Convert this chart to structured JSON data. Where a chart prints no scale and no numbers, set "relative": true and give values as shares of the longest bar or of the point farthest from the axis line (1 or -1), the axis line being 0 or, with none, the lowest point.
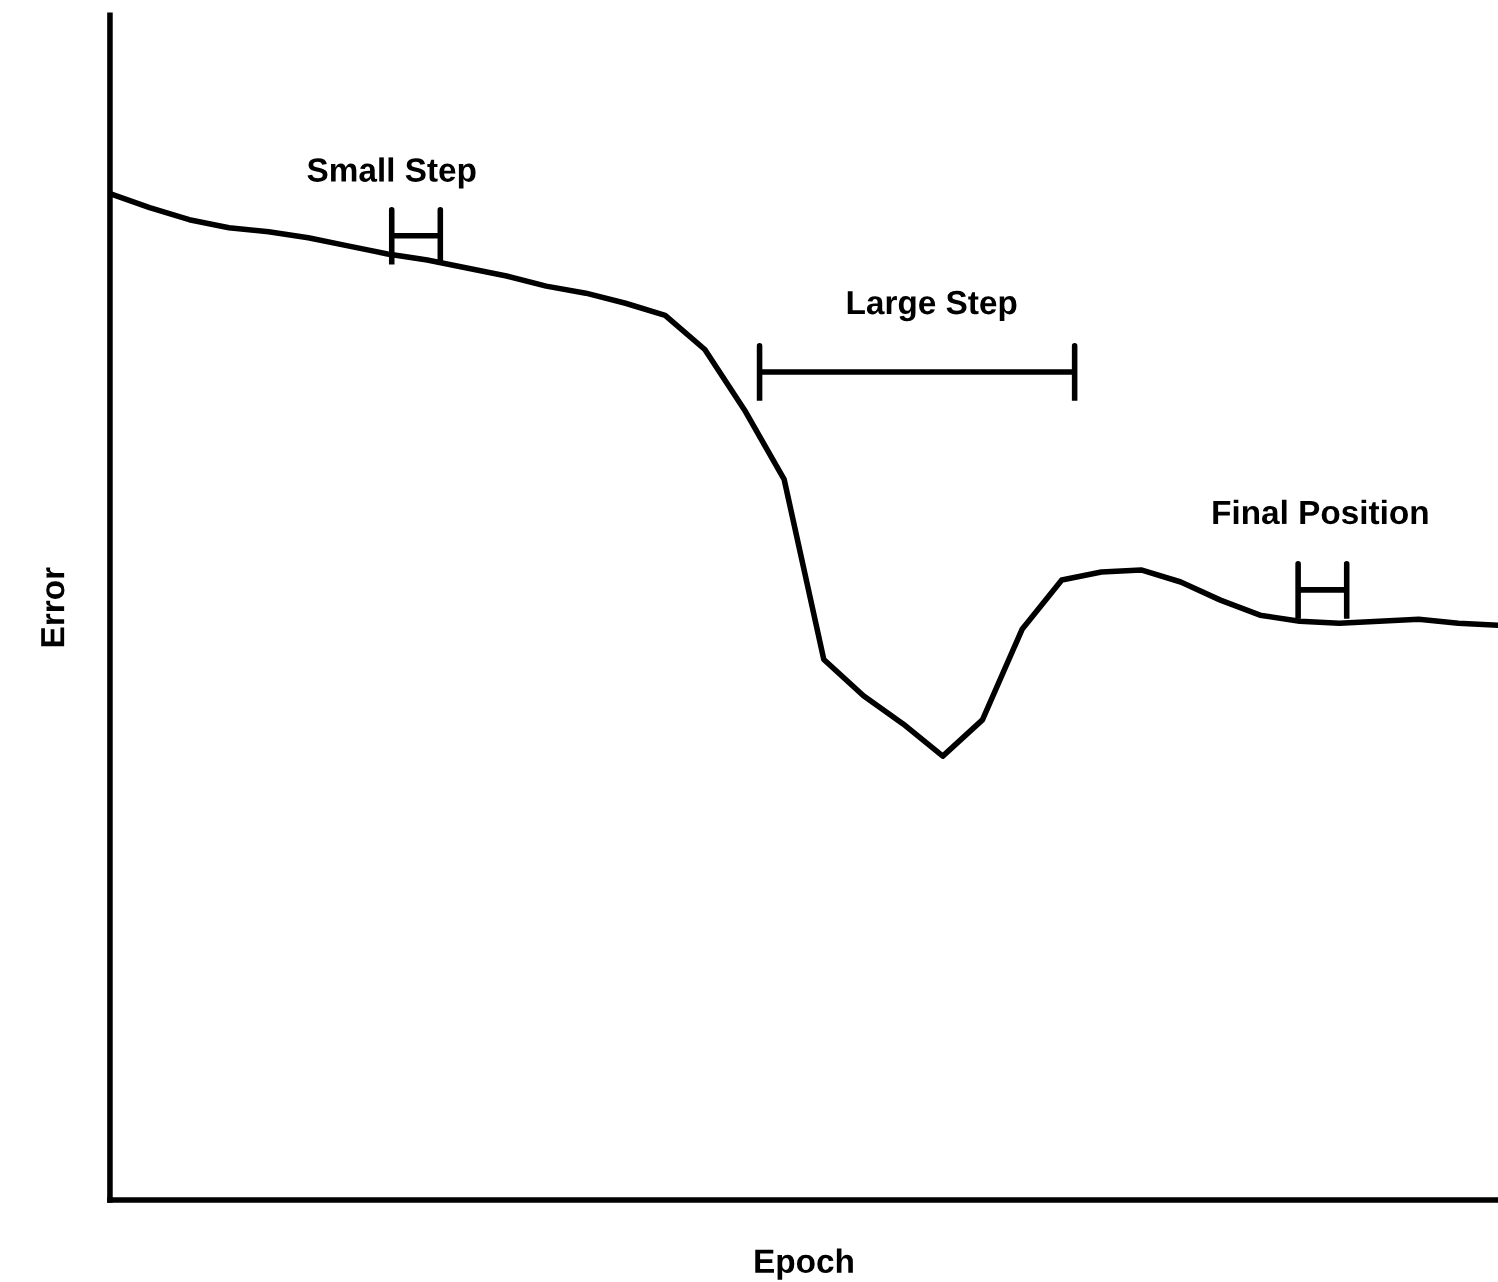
{
  "chart_data": {
    "type": "line",
    "relative": true,
    "xlabel": "Epoch",
    "ylabel": "Error",
    "categories": [
      null,
      null,
      null,
      null,
      null,
      null,
      null,
      null,
      null,
      null,
      null,
      null,
      null,
      null,
      null,
      null,
      null,
      null,
      null,
      null,
      null,
      null,
      null,
      null,
      null,
      null,
      null,
      null,
      null,
      null,
      null,
      null,
      null,
      null,
      null,
      null
    ],
    "series": [
      {
        "color": "#000000",
        "values": [
          1,
          0.986,
          0.974,
          0.966,
          0.962,
          0.956,
          0.948,
          0.94,
          0.934,
          0.926,
          0.918,
          0.908,
          0.901,
          0.891,
          0.879,
          0.845,
          0.785,
          0.716,
          0.537,
          0.501,
          0.473,
          0.441,
          0.477,
          0.567,
          0.616,
          0.624,
          0.626,
          0.614,
          0.596,
          0.581,
          0.575,
          0.573,
          0.575,
          0.577,
          0.573,
          0.571
        ]
      }
    ],
    "annotations": [
      "Small Step",
      "Large Step",
      "Final Position"
    ],
    "grid": false,
    "legend": false,
    "marker": "none",
    "line_style": "solid"
  }
}
